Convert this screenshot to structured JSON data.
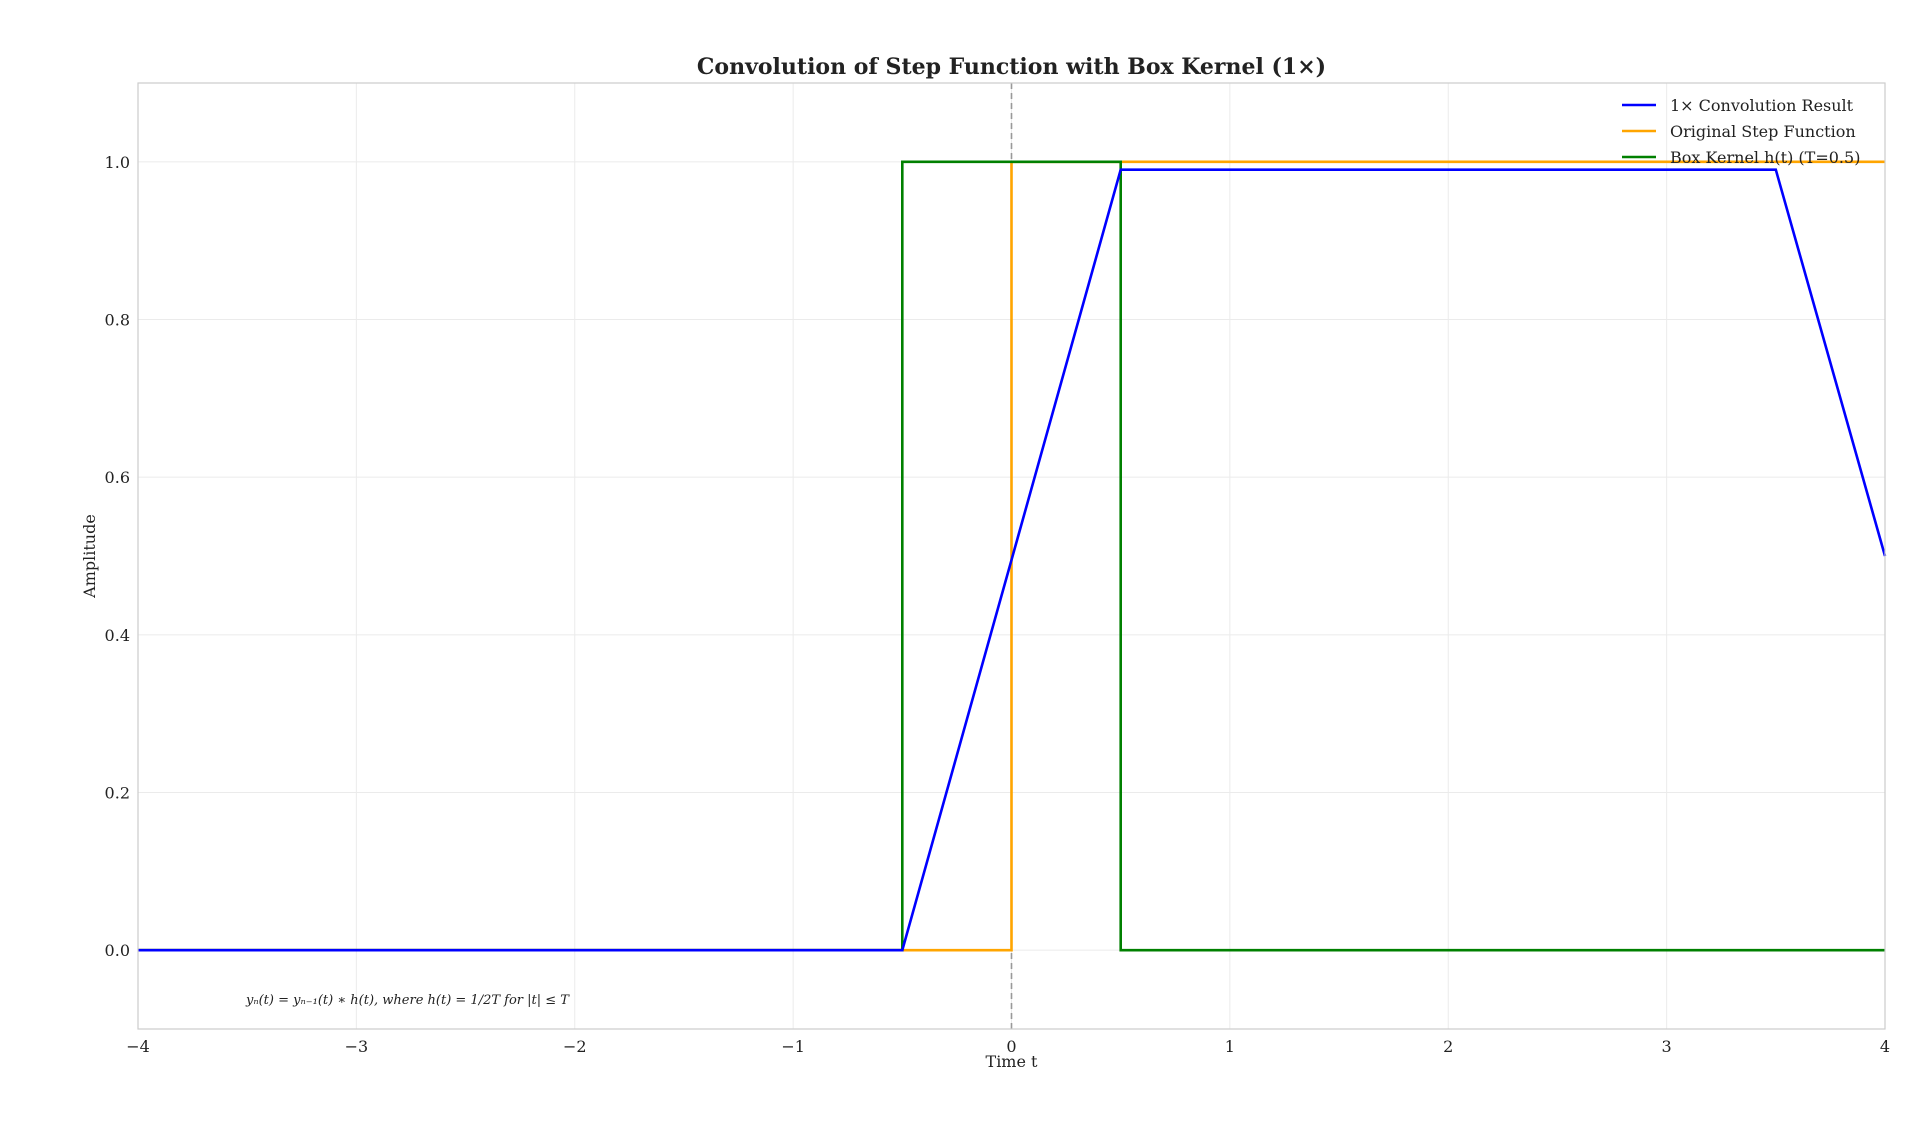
{
  "chart_data": {
    "type": "line",
    "title": "Convolution of Step Function with Box Kernel (1×)",
    "xlabel": "Time t",
    "ylabel": "Amplitude",
    "xlim": [
      -4,
      4
    ],
    "ylim": [
      -0.1,
      1.1
    ],
    "xticks": [
      -4,
      -3,
      -2,
      -1,
      0,
      1,
      2,
      3,
      4
    ],
    "yticks": [
      0.0,
      0.2,
      0.4,
      0.6,
      0.8,
      1.0
    ],
    "xtick_labels": [
      "−4",
      "−3",
      "−2",
      "−1",
      "0",
      "1",
      "2",
      "3",
      "4"
    ],
    "ytick_labels": [
      "0.0",
      "0.2",
      "0.4",
      "0.6",
      "0.8",
      "1.0"
    ],
    "grid": true,
    "legend_position": "top-right",
    "vline": {
      "x": 0,
      "color": "#999999",
      "style": "dashed"
    },
    "annotation": "yₙ(t) = yₙ₋₁(t) ∗ h(t), where h(t) = 1/2T for |t| ≤ T",
    "series": [
      {
        "name": "Original Step Function",
        "color": "#FFA500",
        "x": [
          -4,
          0,
          0,
          4
        ],
        "y": [
          0,
          0,
          1,
          1
        ]
      },
      {
        "name": "Box Kernel h(t) (T=0.5)",
        "color": "#008000",
        "x": [
          -4,
          -0.5,
          -0.5,
          0.5,
          0.5,
          4
        ],
        "y": [
          0,
          0,
          1,
          1,
          0,
          0
        ]
      },
      {
        "name": "1× Convolution Result",
        "color": "#0000FF",
        "x": [
          -4,
          -0.5,
          0.5,
          3.5,
          4
        ],
        "y": [
          0,
          0,
          0.99,
          0.99,
          0.5
        ]
      }
    ],
    "legend_order": [
      2,
      0,
      1
    ]
  }
}
